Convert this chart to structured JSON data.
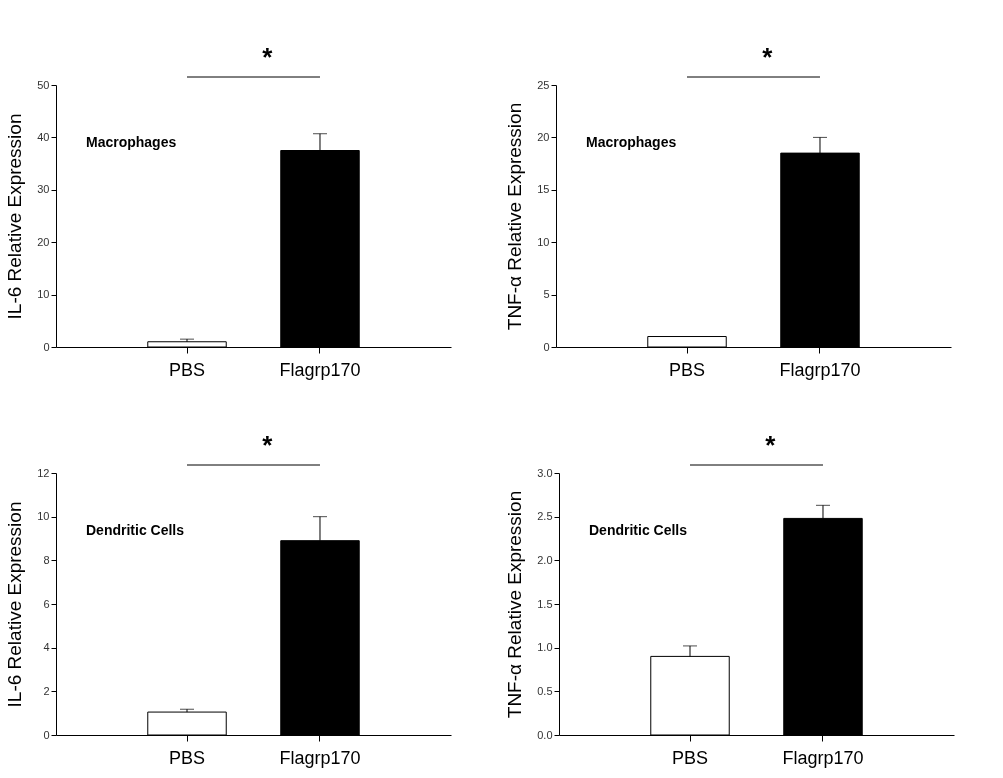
{
  "chart_data": [
    {
      "type": "bar",
      "ylabel": "IL-6 Relative Expression",
      "categories": [
        "PBS",
        "Flagrp170"
      ],
      "values": [
        1.0,
        37.5
      ],
      "colors": [
        "#ffffff",
        "#000000"
      ],
      "errors": [
        [
          1.0,
          1.5
        ],
        [
          37.5,
          40.7
        ]
      ],
      "ylim": [
        0,
        50
      ],
      "yticks": [
        0,
        10,
        20,
        30,
        40,
        50
      ],
      "annotations": [
        "*",
        "Macrophages"
      ]
    },
    {
      "type": "bar",
      "ylabel": "TNF-α Relative Expression",
      "categories": [
        "PBS",
        "Flagrp170"
      ],
      "values": [
        1.0,
        18.5
      ],
      "colors": [
        "#ffffff",
        "#000000"
      ],
      "errors": [
        null,
        [
          18.5,
          20.0
        ]
      ],
      "ylim": [
        0,
        25
      ],
      "yticks": [
        0,
        5,
        10,
        15,
        20,
        25
      ],
      "annotations": [
        "*",
        "Macrophages"
      ]
    },
    {
      "type": "bar",
      "ylabel": "IL-6 Relative Expression",
      "categories": [
        "PBS",
        "Flagrp170"
      ],
      "values": [
        1.05,
        8.9
      ],
      "colors": [
        "#ffffff",
        "#000000"
      ],
      "errors": [
        [
          1.05,
          1.18
        ],
        [
          8.9,
          10.0
        ]
      ],
      "ylim": [
        0,
        12
      ],
      "yticks": [
        0,
        2,
        4,
        6,
        8,
        10,
        12
      ],
      "annotations": [
        "*",
        "Dendritic Cells"
      ]
    },
    {
      "type": "bar",
      "ylabel": "TNF-α Relative Expression",
      "categories": [
        "PBS",
        "Flagrp170"
      ],
      "values": [
        0.9,
        2.48
      ],
      "colors": [
        "#ffffff",
        "#000000"
      ],
      "errors": [
        [
          0.9,
          1.02
        ],
        [
          2.48,
          2.63
        ]
      ],
      "ylim": [
        0,
        3
      ],
      "yticks": [
        {
          "value": 0,
          "label": "0.0"
        },
        {
          "value": 0.5,
          "label": "0.5"
        },
        {
          "value": 1,
          "label": "1.0"
        },
        {
          "value": 1.5,
          "label": "1.5"
        },
        {
          "value": 2,
          "label": "2.0"
        },
        {
          "value": 2.5,
          "label": "2.5"
        },
        {
          "value": 3,
          "label": "3.0"
        }
      ],
      "annotations": [
        "*",
        "Dendritic Cells"
      ]
    }
  ]
}
